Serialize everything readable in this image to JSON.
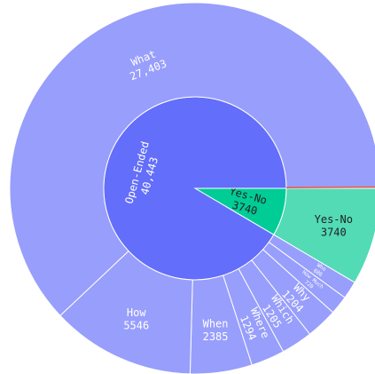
{
  "chart_data": {
    "type": "sunburst",
    "rings": [
      {
        "labels": [
          "Yes-No",
          "Open-Ended"
        ],
        "values": [
          3740,
          40443
        ],
        "value_labels": [
          "3740",
          "40,443"
        ],
        "colors": [
          "#00cc96",
          "#636efa"
        ]
      },
      {
        "labels": [
          "Yes-No",
          "Who",
          "How Much",
          "Why",
          "Which",
          "Where",
          "When",
          "How",
          "What"
        ],
        "parents": [
          0,
          1,
          1,
          1,
          1,
          1,
          1,
          1,
          1
        ],
        "values": [
          3740,
          686,
          720,
          1204,
          1205,
          1294,
          2385,
          5546,
          27403
        ],
        "value_labels": [
          "3740",
          "686",
          "720",
          "1204",
          "1205",
          "1294",
          "2385",
          "5546",
          "27,403"
        ],
        "colors": [
          "#52dbb5",
          "#989efb",
          "#989efb",
          "#989efb",
          "#989efb",
          "#989efb",
          "#989efb",
          "#989efb",
          "#989efb"
        ]
      }
    ]
  }
}
